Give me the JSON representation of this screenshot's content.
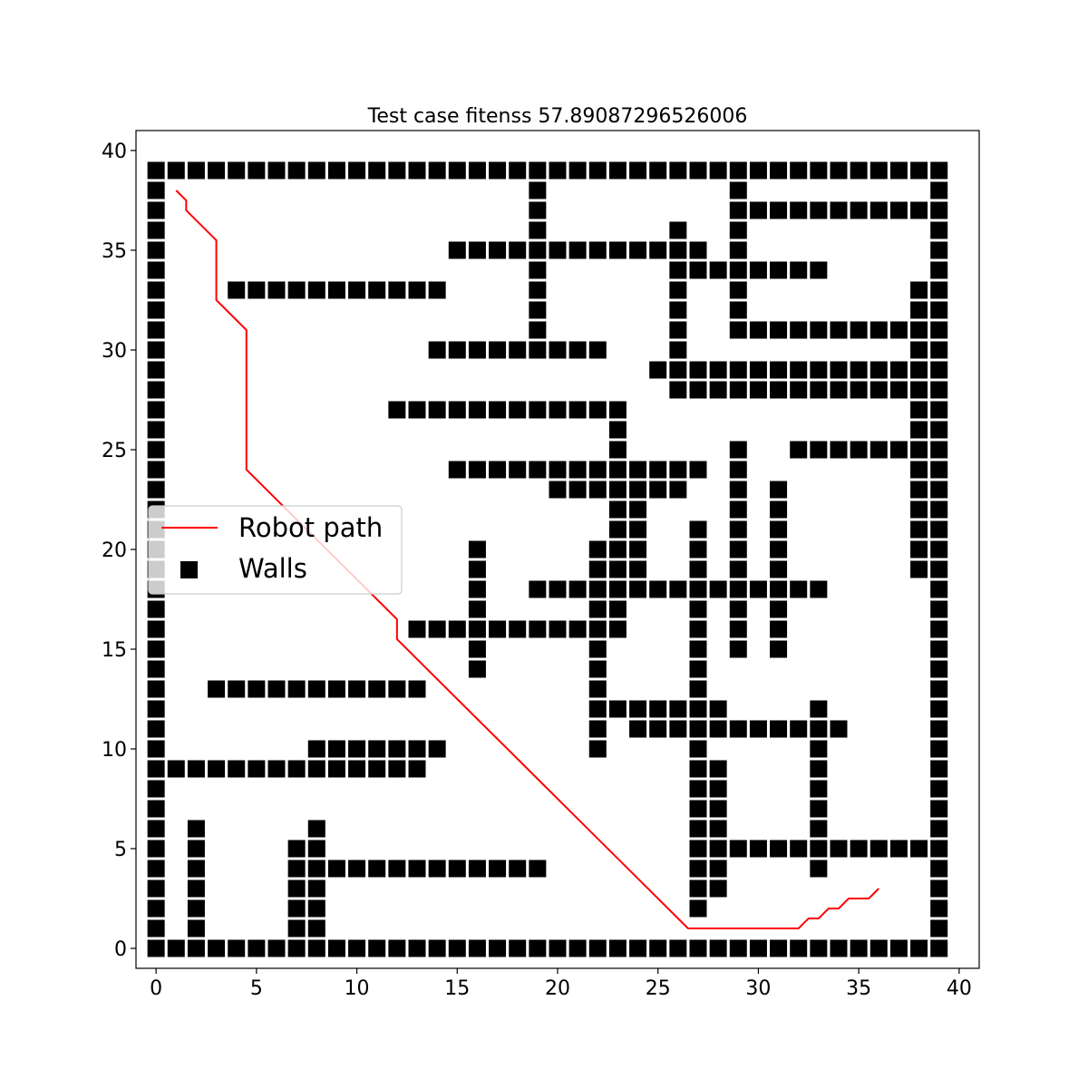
{
  "chart_data": {
    "type": "scatter",
    "title": "Test case fitenss 57.89087296526006",
    "xlabel": "",
    "ylabel": "",
    "xlim": [
      -1,
      41
    ],
    "ylim": [
      -1,
      41
    ],
    "xticks": [
      0,
      5,
      10,
      15,
      20,
      25,
      30,
      35,
      40
    ],
    "yticks": [
      0,
      5,
      10,
      15,
      20,
      25,
      30,
      35,
      40
    ],
    "grid": false,
    "legend_position": "center-left",
    "series": [
      {
        "name": "Robot path",
        "kind": "line",
        "color": "#ff0000",
        "points": [
          [
            1,
            38
          ],
          [
            1.5,
            37.5
          ],
          [
            1.5,
            37
          ],
          [
            3,
            35.5
          ],
          [
            3,
            32.5
          ],
          [
            4.5,
            31
          ],
          [
            4.5,
            24
          ],
          [
            12,
            16.5
          ],
          [
            12,
            15.5
          ],
          [
            26.5,
            1
          ],
          [
            32,
            1
          ],
          [
            32.5,
            1.5
          ],
          [
            33,
            1.5
          ],
          [
            33.5,
            2
          ],
          [
            34,
            2
          ],
          [
            34.5,
            2.5
          ],
          [
            35.5,
            2.5
          ],
          [
            36,
            3
          ]
        ]
      },
      {
        "name": "Walls",
        "kind": "square-markers",
        "color": "#000000",
        "rows": [
          {
            "y": 39,
            "x_ranges": [
              [
                0,
                39
              ]
            ]
          },
          {
            "y": 38,
            "x": [
              0,
              19,
              29,
              39
            ]
          },
          {
            "y": 37,
            "x": [
              0,
              19,
              29,
              30,
              31,
              32,
              33,
              34,
              35,
              36,
              37,
              38,
              39
            ]
          },
          {
            "y": 36,
            "x": [
              0,
              19,
              26,
              29,
              39
            ]
          },
          {
            "y": 35,
            "x": [
              0,
              15,
              16,
              17,
              18,
              19,
              20,
              21,
              22,
              23,
              24,
              25,
              26,
              27,
              29,
              39
            ]
          },
          {
            "y": 34,
            "x": [
              0,
              19,
              26,
              27,
              28,
              29,
              30,
              31,
              32,
              33,
              39
            ]
          },
          {
            "y": 33,
            "x": [
              0,
              4,
              5,
              6,
              7,
              8,
              9,
              10,
              11,
              12,
              13,
              14,
              19,
              26,
              29,
              38,
              39
            ]
          },
          {
            "y": 32,
            "x": [
              0,
              19,
              26,
              29,
              38,
              39
            ]
          },
          {
            "y": 31,
            "x": [
              0,
              19,
              26,
              29,
              30,
              31,
              32,
              33,
              34,
              35,
              36,
              37,
              38,
              39
            ]
          },
          {
            "y": 30,
            "x": [
              0,
              14,
              15,
              16,
              17,
              18,
              19,
              20,
              21,
              22,
              26,
              38,
              39
            ]
          },
          {
            "y": 29,
            "x": [
              0,
              25,
              26,
              27,
              28,
              29,
              30,
              31,
              32,
              33,
              34,
              35,
              36,
              37,
              38,
              39
            ]
          },
          {
            "y": 28,
            "x": [
              0,
              26,
              27,
              28,
              29,
              30,
              31,
              32,
              33,
              34,
              35,
              36,
              37,
              38,
              39
            ]
          },
          {
            "y": 27,
            "x": [
              0,
              12,
              13,
              14,
              15,
              16,
              17,
              18,
              19,
              20,
              21,
              22,
              23,
              38,
              39
            ]
          },
          {
            "y": 26,
            "x": [
              0,
              23,
              38,
              39
            ]
          },
          {
            "y": 25,
            "x": [
              0,
              23,
              29,
              32,
              33,
              34,
              35,
              36,
              37,
              38,
              39
            ]
          },
          {
            "y": 24,
            "x": [
              0,
              15,
              16,
              17,
              18,
              19,
              20,
              21,
              22,
              23,
              24,
              25,
              26,
              27,
              29,
              38,
              39
            ]
          },
          {
            "y": 23,
            "x": [
              0,
              20,
              21,
              22,
              23,
              24,
              25,
              26,
              29,
              31,
              38,
              39
            ]
          },
          {
            "y": 22,
            "x": [
              0,
              23,
              24,
              29,
              31,
              38,
              39
            ]
          },
          {
            "y": 21,
            "x": [
              0,
              23,
              24,
              27,
              29,
              31,
              38,
              39
            ]
          },
          {
            "y": 20,
            "x": [
              0,
              16,
              22,
              23,
              24,
              27,
              29,
              31,
              38,
              39
            ]
          },
          {
            "y": 19,
            "x": [
              0,
              16,
              22,
              23,
              24,
              27,
              29,
              31,
              38,
              39
            ]
          },
          {
            "y": 18,
            "x": [
              0,
              16,
              19,
              20,
              21,
              22,
              23,
              24,
              25,
              26,
              27,
              28,
              29,
              30,
              31,
              32,
              33,
              39
            ]
          },
          {
            "y": 17,
            "x": [
              0,
              16,
              22,
              23,
              27,
              29,
              31,
              39
            ]
          },
          {
            "y": 16,
            "x": [
              0,
              13,
              14,
              15,
              16,
              17,
              18,
              19,
              20,
              21,
              22,
              23,
              27,
              29,
              31,
              39
            ]
          },
          {
            "y": 15,
            "x": [
              0,
              16,
              22,
              27,
              29,
              31,
              39
            ]
          },
          {
            "y": 14,
            "x": [
              0,
              16,
              22,
              27,
              39
            ]
          },
          {
            "y": 13,
            "x": [
              0,
              3,
              4,
              5,
              6,
              7,
              8,
              9,
              10,
              11,
              12,
              13,
              22,
              27,
              39
            ]
          },
          {
            "y": 12,
            "x": [
              0,
              22,
              23,
              24,
              25,
              26,
              27,
              28,
              33,
              39
            ]
          },
          {
            "y": 11,
            "x": [
              0,
              22,
              24,
              25,
              26,
              27,
              28,
              29,
              30,
              31,
              32,
              33,
              34,
              39
            ]
          },
          {
            "y": 10,
            "x": [
              0,
              8,
              9,
              10,
              11,
              12,
              13,
              14,
              22,
              27,
              33,
              39
            ]
          },
          {
            "y": 9,
            "x": [
              0,
              1,
              2,
              3,
              4,
              5,
              6,
              7,
              8,
              9,
              10,
              11,
              12,
              13,
              27,
              28,
              33,
              39
            ]
          },
          {
            "y": 8,
            "x": [
              0,
              27,
              28,
              33,
              39
            ]
          },
          {
            "y": 7,
            "x": [
              0,
              27,
              28,
              33,
              39
            ]
          },
          {
            "y": 6,
            "x": [
              0,
              2,
              8,
              27,
              28,
              33,
              39
            ]
          },
          {
            "y": 5,
            "x": [
              0,
              2,
              7,
              8,
              27,
              28,
              29,
              30,
              31,
              32,
              33,
              34,
              35,
              36,
              37,
              38,
              39
            ]
          },
          {
            "y": 4,
            "x": [
              0,
              2,
              7,
              8,
              9,
              10,
              11,
              12,
              13,
              14,
              15,
              16,
              17,
              18,
              19,
              27,
              28,
              33,
              39
            ]
          },
          {
            "y": 3,
            "x": [
              0,
              2,
              7,
              8,
              27,
              28,
              39
            ]
          },
          {
            "y": 2,
            "x": [
              0,
              2,
              7,
              8,
              27,
              39
            ]
          },
          {
            "y": 1,
            "x": [
              0,
              2,
              7,
              8,
              39
            ]
          },
          {
            "y": 0,
            "x_ranges": [
              [
                0,
                39
              ]
            ]
          }
        ]
      }
    ],
    "legend": [
      {
        "label": "Robot path",
        "marker": "line",
        "color": "#ff0000"
      },
      {
        "label": "Walls",
        "marker": "square",
        "color": "#000000"
      }
    ]
  }
}
